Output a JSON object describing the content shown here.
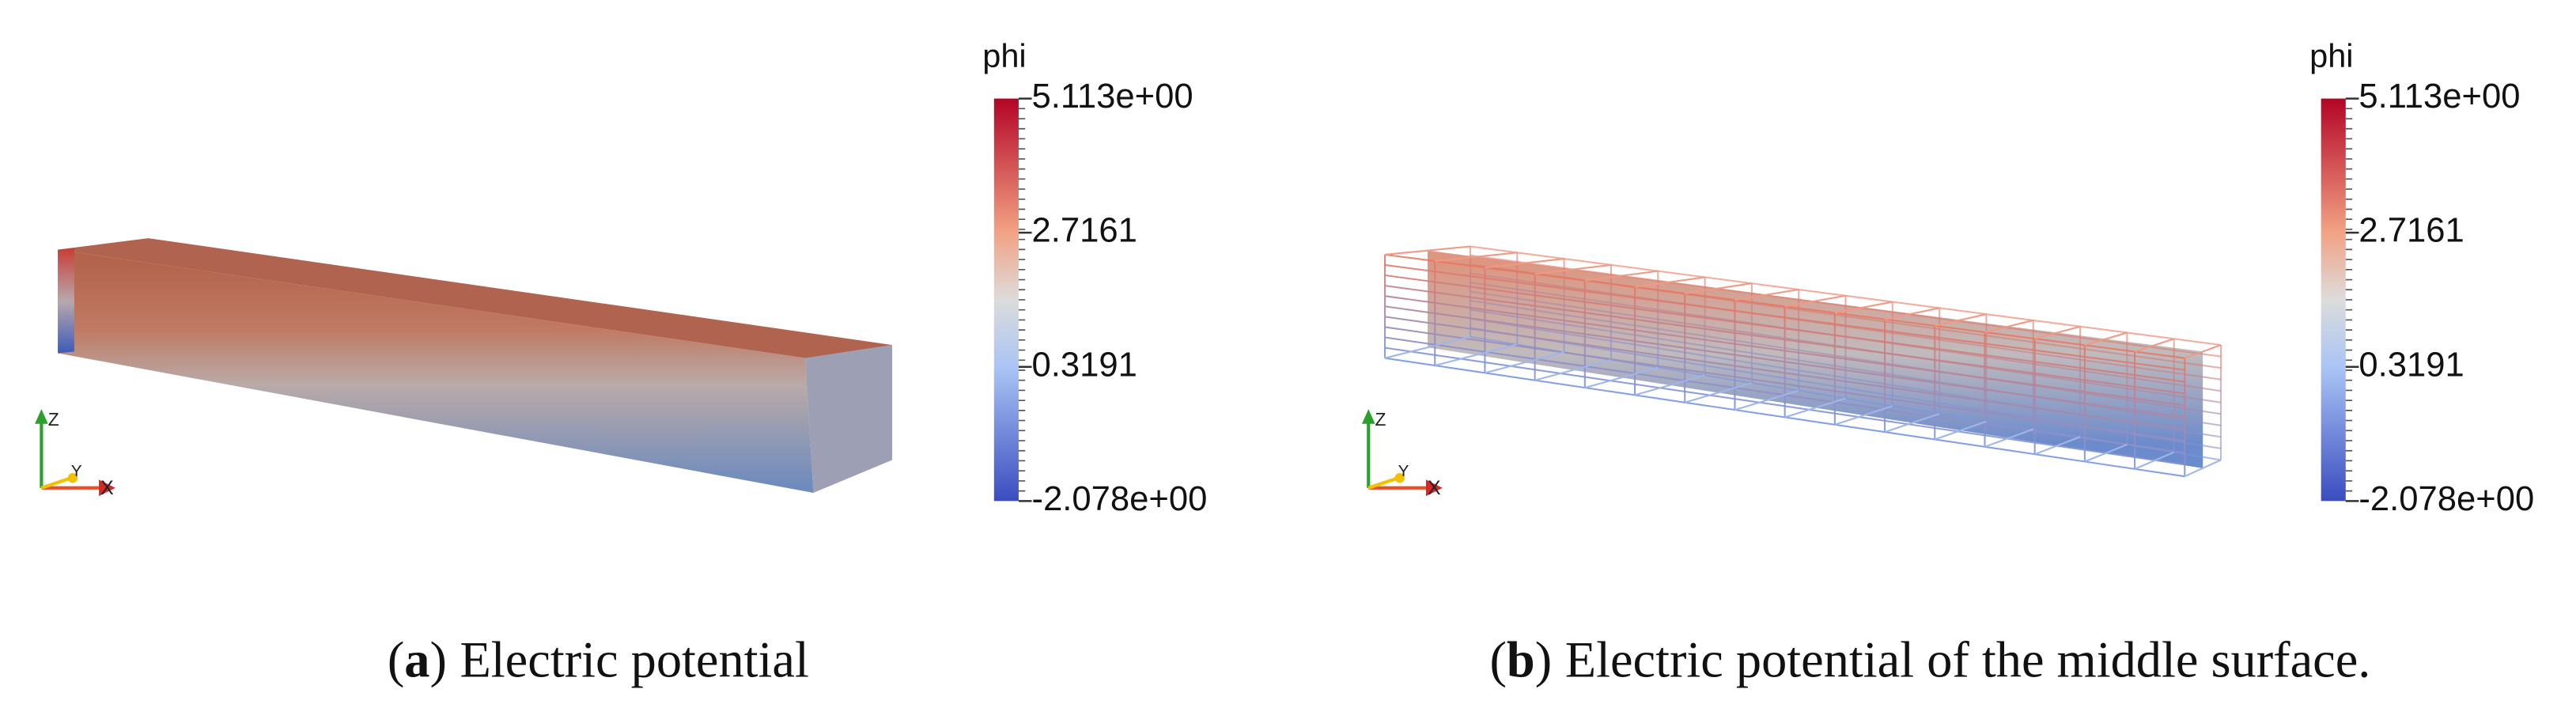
{
  "panels": [
    {
      "colorbar": {
        "title": "phi",
        "ticks": [
          {
            "value": 5.113,
            "label": "5.113e+00"
          },
          {
            "value": 2.7161,
            "label": "2.7161"
          },
          {
            "value": 0.3191,
            "label": "0.3191"
          },
          {
            "value": -2.078,
            "label": "-2.078e+00"
          }
        ]
      },
      "axes": {
        "z": "Z",
        "y": "Y",
        "x": "X"
      },
      "caption": {
        "open": "(",
        "tag": "a",
        "close": ")",
        "text": "Electric potential"
      }
    },
    {
      "colorbar": {
        "title": "phi",
        "ticks": [
          {
            "value": 5.113,
            "label": "5.113e+00"
          },
          {
            "value": 2.7161,
            "label": "2.7161"
          },
          {
            "value": 0.3191,
            "label": "0.3191"
          },
          {
            "value": -2.078,
            "label": "-2.078e+00"
          }
        ]
      },
      "axes": {
        "z": "Z",
        "y": "Y",
        "x": "X"
      },
      "caption": {
        "open": "(",
        "tag": "b",
        "close": ")",
        "text": "Electric potential of the middle surface."
      }
    }
  ]
}
